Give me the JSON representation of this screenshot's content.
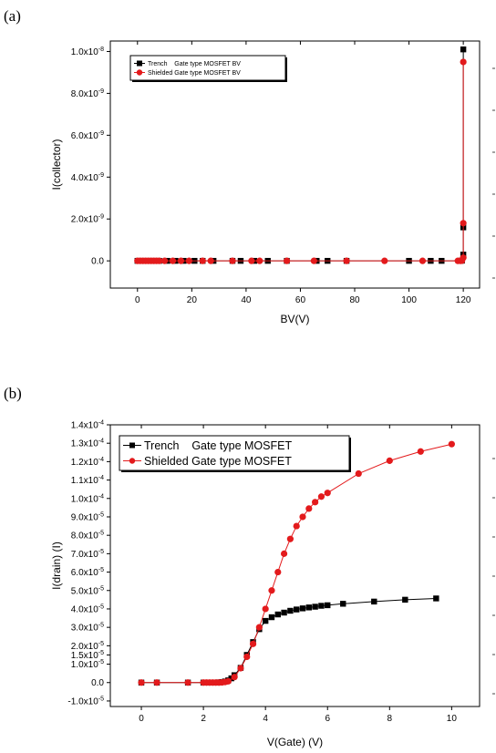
{
  "panels": {
    "a_label": "(a)",
    "b_label": "(b)"
  },
  "colors": {
    "trench": "#000000",
    "shielded": "#e31a1c"
  },
  "chart_data": [
    {
      "type": "scatter",
      "panel": "(a)",
      "xlabel": "BV(V)",
      "ylabel": "I(collector)",
      "xlim": [
        -10,
        126
      ],
      "ylim": [
        -1.3e-09,
        1.05e-08
      ],
      "x_ticks": [
        {
          "v": 0,
          "label": "0"
        },
        {
          "v": 20,
          "label": "20"
        },
        {
          "v": 40,
          "label": "40"
        },
        {
          "v": 60,
          "label": "60"
        },
        {
          "v": 80,
          "label": "80"
        },
        {
          "v": 100,
          "label": "100"
        },
        {
          "v": 120,
          "label": "120"
        }
      ],
      "y_ticks": [
        {
          "v": 0,
          "label": "0.0",
          "exp": ""
        },
        {
          "v": 2e-09,
          "label": "2.0x10",
          "exp": "-9"
        },
        {
          "v": 4e-09,
          "label": "4.0x10",
          "exp": "-9"
        },
        {
          "v": 6e-09,
          "label": "6.0x10",
          "exp": "-9"
        },
        {
          "v": 8e-09,
          "label": "8.0x10",
          "exp": "-9"
        },
        {
          "v": 1e-08,
          "label": "1.0x10",
          "exp": "-8"
        }
      ],
      "legend_position": "top-left",
      "series": [
        {
          "name": "Trench    Gate type MOSFET BV",
          "marker": "square",
          "x": [
            0,
            2,
            4,
            6,
            8,
            11,
            14,
            17,
            21,
            24,
            28,
            35,
            38,
            43,
            48,
            55,
            66,
            70,
            77,
            100,
            108,
            112,
            119,
            119.5,
            120,
            120,
            120
          ],
          "y": [
            0,
            0,
            0,
            0,
            0,
            0,
            0,
            0,
            0,
            0,
            0,
            0,
            0,
            0,
            0,
            0,
            0,
            0,
            0,
            0,
            0,
            0,
            0,
            1e-11,
            3e-10,
            1.6e-09,
            1.01e-08
          ]
        },
        {
          "name": "Shielded Gate type MOSFET BV",
          "marker": "circle",
          "x": [
            0,
            1,
            2,
            3,
            4,
            5,
            6,
            7,
            8,
            10,
            13,
            16,
            19,
            24,
            27,
            35,
            42,
            45,
            55,
            65,
            77,
            91,
            105,
            118,
            119,
            119.5,
            120,
            120,
            120
          ],
          "y": [
            0,
            0,
            0,
            0,
            0,
            0,
            0,
            0,
            0,
            0,
            0,
            0,
            0,
            0,
            0,
            0,
            0,
            0,
            0,
            0,
            0,
            0,
            0,
            0,
            0,
            1e-11,
            1.5e-10,
            1.8e-09,
            9.5e-09
          ]
        }
      ]
    },
    {
      "type": "line",
      "panel": "(b)",
      "xlabel": "V(Gate) (V)",
      "ylabel": "I(drain) (I)",
      "xlim": [
        -1,
        10.9
      ],
      "ylim": [
        -1.3e-05,
        0.00014
      ],
      "x_ticks": [
        {
          "v": 0,
          "label": "0"
        },
        {
          "v": 2,
          "label": "2"
        },
        {
          "v": 4,
          "label": "4"
        },
        {
          "v": 6,
          "label": "6"
        },
        {
          "v": 8,
          "label": "8"
        },
        {
          "v": 10,
          "label": "10"
        }
      ],
      "y_ticks": [
        {
          "v": -1e-05,
          "label": "-1.0x10",
          "exp": "-5"
        },
        {
          "v": 0,
          "label": "0.0",
          "exp": ""
        },
        {
          "v": 1e-05,
          "label": "1.0x10",
          "exp": "-5"
        },
        {
          "v": 1.5e-05,
          "label": "1.5x10",
          "exp": "-5"
        },
        {
          "v": 2e-05,
          "label": "2.0x10",
          "exp": "-5"
        },
        {
          "v": 3e-05,
          "label": "3.0x10",
          "exp": "-5"
        },
        {
          "v": 4e-05,
          "label": "4.0x10",
          "exp": "-5"
        },
        {
          "v": 5e-05,
          "label": "5.0x10",
          "exp": "-5"
        },
        {
          "v": 6e-05,
          "label": "6.0x10",
          "exp": "-5"
        },
        {
          "v": 7e-05,
          "label": "7.0x10",
          "exp": "-5"
        },
        {
          "v": 8e-05,
          "label": "8.0x10",
          "exp": "-5"
        },
        {
          "v": 9e-05,
          "label": "9.0x10",
          "exp": "-5"
        },
        {
          "v": 0.0001,
          "label": "1.0x10",
          "exp": "-4"
        },
        {
          "v": 0.00011,
          "label": "1.1x10",
          "exp": "-4"
        },
        {
          "v": 0.00012,
          "label": "1.2x10",
          "exp": "-4"
        },
        {
          "v": 0.00013,
          "label": "1.3x10",
          "exp": "-4"
        },
        {
          "v": 0.00014,
          "label": "1.4x10",
          "exp": "-4"
        }
      ],
      "legend_position": "top-left",
      "series": [
        {
          "name": "Trench    Gate type MOSFET",
          "marker": "square",
          "x": [
            0,
            0.5,
            1.5,
            2,
            2.1,
            2.2,
            2.3,
            2.4,
            2.5,
            2.6,
            2.7,
            2.8,
            2.9,
            3.0,
            3.2,
            3.4,
            3.6,
            3.8,
            4.0,
            4.2,
            4.4,
            4.6,
            4.8,
            5.0,
            5.2,
            5.4,
            5.6,
            5.8,
            6.0,
            6.5,
            7.5,
            8.5,
            9.5
          ],
          "y": [
            0,
            0,
            0,
            0,
            0,
            0,
            0,
            0,
            1e-07,
            3e-07,
            6e-07,
            1.2e-06,
            2.3e-06,
            4e-06,
            8e-06,
            1.5e-05,
            2.2e-05,
            2.9e-05,
            3.35e-05,
            3.55e-05,
            3.7e-05,
            3.8e-05,
            3.9e-05,
            3.97e-05,
            4.03e-05,
            4.08e-05,
            4.12e-05,
            4.17e-05,
            4.2e-05,
            4.28e-05,
            4.4e-05,
            4.5e-05,
            4.57e-05
          ]
        },
        {
          "name": "Shielded Gate type MOSFET",
          "marker": "circle",
          "x": [
            0,
            0.5,
            1.5,
            2,
            2.1,
            2.2,
            2.3,
            2.4,
            2.5,
            2.6,
            2.7,
            2.8,
            3.0,
            3.2,
            3.4,
            3.6,
            3.8,
            4.0,
            4.2,
            4.4,
            4.6,
            4.8,
            5.0,
            5.2,
            5.4,
            5.6,
            5.8,
            6.0,
            7.0,
            8.0,
            9.0,
            10.0
          ],
          "y": [
            0,
            0,
            0,
            0,
            0,
            0,
            0,
            0,
            0,
            1e-07,
            3e-07,
            7e-07,
            3e-06,
            7.8e-06,
            1.4e-05,
            2.1e-05,
            3e-05,
            4e-05,
            5e-05,
            6e-05,
            7e-05,
            7.8e-05,
            8.5e-05,
            9e-05,
            9.45e-05,
            9.8e-05,
            0.000101,
            0.000103,
            0.0001135,
            0.0001205,
            0.0001255,
            0.0001295
          ]
        }
      ]
    }
  ]
}
